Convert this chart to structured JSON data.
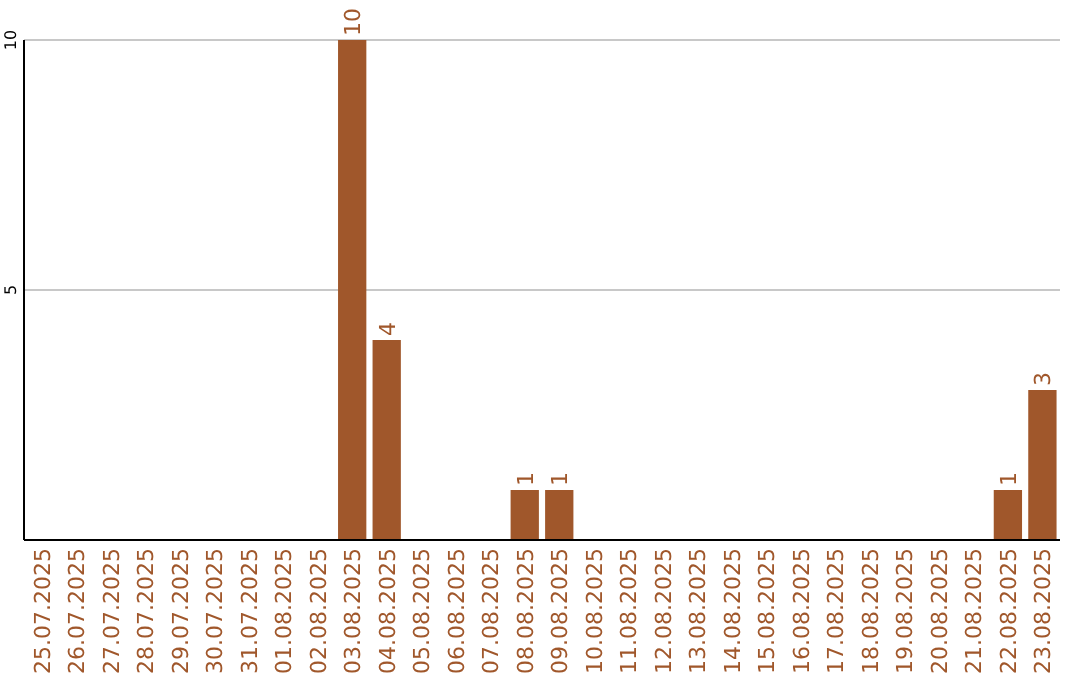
{
  "chart_data": {
    "type": "bar",
    "categories": [
      "25.07.2025",
      "26.07.2025",
      "27.07.2025",
      "28.07.2025",
      "29.07.2025",
      "30.07.2025",
      "31.07.2025",
      "01.08.2025",
      "02.08.2025",
      "03.08.2025",
      "04.08.2025",
      "05.08.2025",
      "06.08.2025",
      "07.08.2025",
      "08.08.2025",
      "09.08.2025",
      "10.08.2025",
      "11.08.2025",
      "12.08.2025",
      "13.08.2025",
      "14.08.2025",
      "15.08.2025",
      "16.08.2025",
      "17.08.2025",
      "18.08.2025",
      "19.08.2025",
      "20.08.2025",
      "21.08.2025",
      "22.08.2025",
      "23.08.2025"
    ],
    "values": [
      0,
      0,
      0,
      0,
      0,
      0,
      0,
      0,
      0,
      10,
      4,
      0,
      0,
      0,
      1,
      1,
      0,
      0,
      0,
      0,
      0,
      0,
      0,
      0,
      0,
      0,
      0,
      0,
      1,
      3
    ],
    "value_labels": [
      null,
      null,
      null,
      null,
      null,
      null,
      null,
      null,
      null,
      "10",
      "4",
      null,
      null,
      null,
      "1",
      "1",
      null,
      null,
      null,
      null,
      null,
      null,
      null,
      null,
      null,
      null,
      null,
      null,
      "1",
      "3"
    ],
    "color": "#a0572b",
    "ylim": [
      0,
      10
    ],
    "yticks": [
      5,
      10
    ],
    "grid": "y"
  }
}
